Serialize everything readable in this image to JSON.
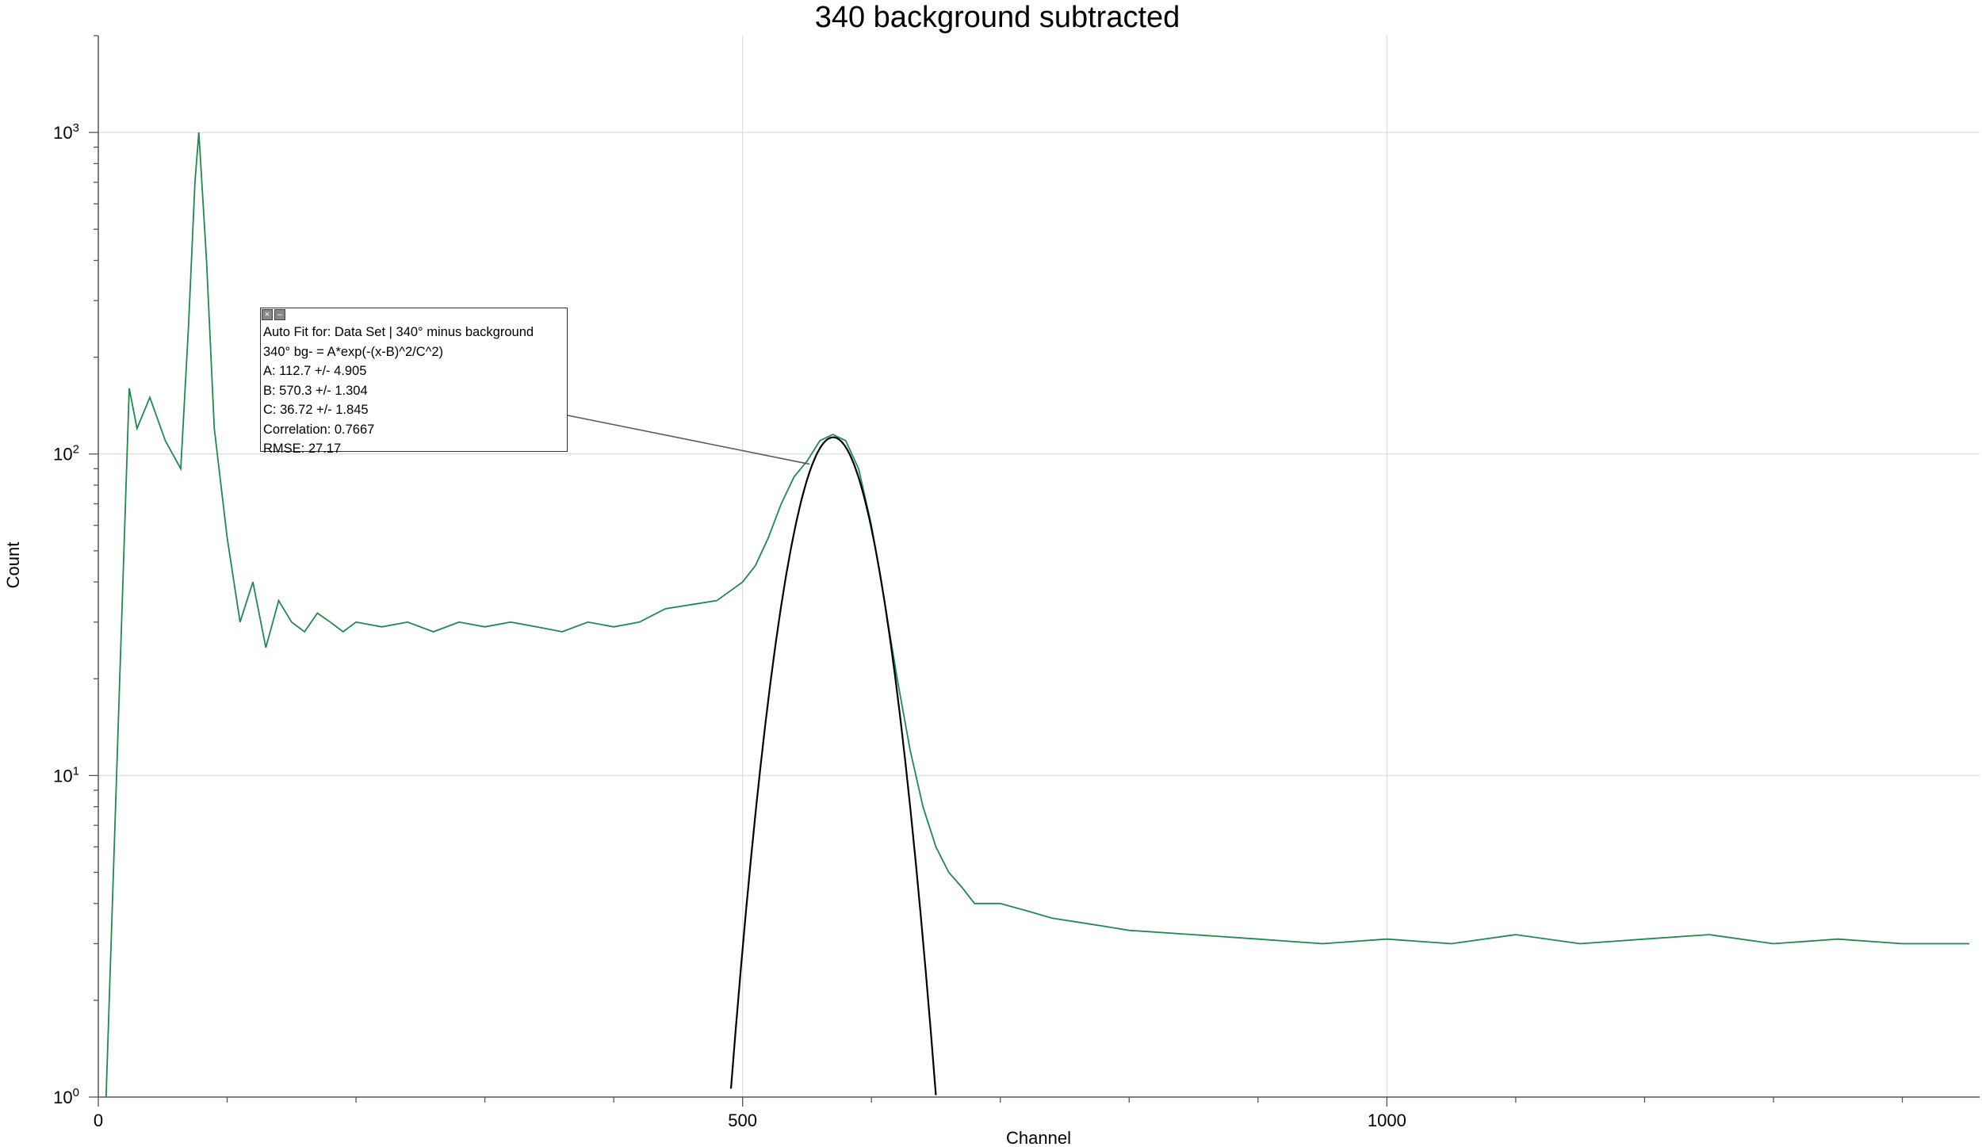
{
  "chart_data": {
    "type": "line",
    "title": "340 background subtracted",
    "xlabel": "Channel",
    "ylabel": "Count",
    "xlim": [
      0,
      1460
    ],
    "ylim": [
      1,
      2000
    ],
    "yscale": "log",
    "grid": true,
    "x_ticks": [
      {
        "value": 0,
        "label": "0"
      },
      {
        "value": 500,
        "label": "500"
      },
      {
        "value": 1000,
        "label": "1000"
      }
    ],
    "y_ticks": [
      {
        "value": 1,
        "base": "10",
        "exp": "0"
      },
      {
        "value": 10,
        "base": "10",
        "exp": "1"
      },
      {
        "value": 100,
        "base": "10",
        "exp": "2"
      },
      {
        "value": 1000,
        "base": "10",
        "exp": "3"
      }
    ],
    "series": [
      {
        "color": "#1f8a4c",
        "x": [
          6,
          24,
          30,
          40,
          52,
          64,
          70,
          75,
          78,
          84,
          90,
          100,
          110,
          120,
          130,
          140,
          150,
          160,
          170,
          180,
          190,
          200,
          220,
          240,
          260,
          280,
          300,
          320,
          340,
          360,
          380,
          400,
          420,
          440,
          460,
          480,
          500,
          510,
          520,
          530,
          540,
          550,
          560,
          570,
          580,
          590,
          600,
          610,
          620,
          630,
          640,
          650,
          660,
          670,
          680,
          700,
          720,
          740,
          760,
          780,
          800,
          850,
          900,
          950,
          1000,
          1050,
          1100,
          1150,
          1200,
          1250,
          1300,
          1350,
          1400,
          1440,
          1452
        ],
        "y": [
          1,
          160,
          120,
          150,
          110,
          90,
          250,
          700,
          1000,
          400,
          120,
          55,
          30,
          40,
          25,
          35,
          30,
          28,
          32,
          30,
          28,
          30,
          29,
          30,
          28,
          30,
          29,
          30,
          29,
          28,
          30,
          29,
          30,
          33,
          34,
          35,
          40,
          45,
          55,
          70,
          85,
          95,
          110,
          115,
          110,
          90,
          60,
          35,
          20,
          12,
          8,
          6,
          5,
          4.5,
          4,
          4,
          3.8,
          3.6,
          3.5,
          3.4,
          3.3,
          3.2,
          3.1,
          3.0,
          3.1,
          3.0,
          3.2,
          3.0,
          3.1,
          3.2,
          3.0,
          3.1,
          3.0,
          3.0,
          3.0
        ]
      },
      {
        "color": "#000000",
        "fit": true,
        "A": 112.7,
        "B": 570.3,
        "C": 36.72,
        "x_range": [
          488,
          650
        ]
      }
    ],
    "annotation": {
      "lines": [
        "Auto Fit for: Data Set | 340° minus background",
        "340° bg- = A*exp(-(x-B)^2/C^2)",
        "A: 112.7 +/- 4.905",
        "B: 570.3 +/- 1.304",
        "C: 36.72 +/- 1.845",
        "Correlation: 0.7667",
        "RMSE: 27.17"
      ],
      "points_to": {
        "x": 552,
        "y": 93
      }
    }
  }
}
